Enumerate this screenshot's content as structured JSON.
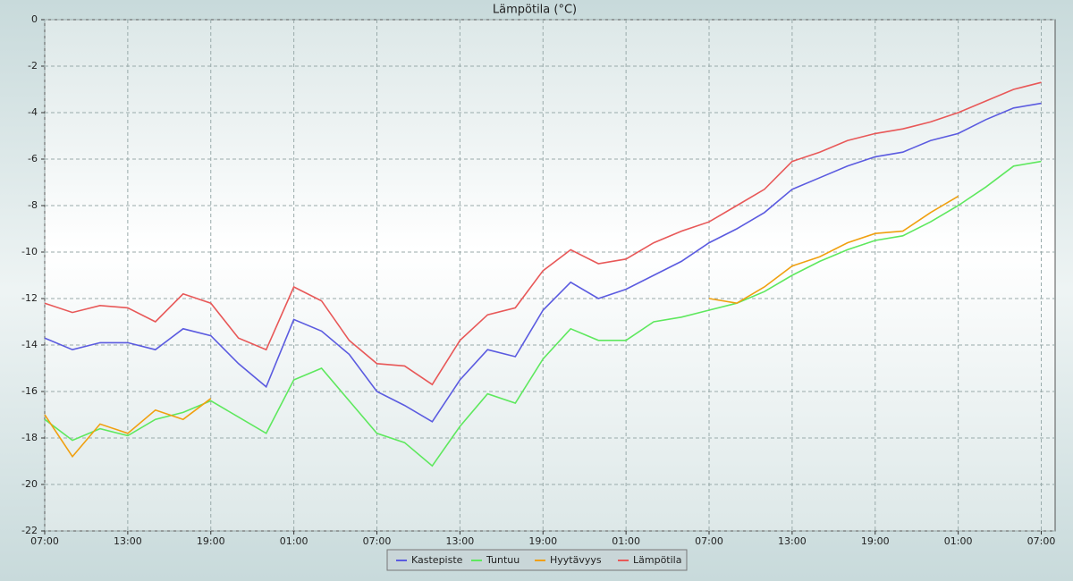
{
  "chart_data": {
    "type": "line",
    "title": "Lämpötila (°C)",
    "x": [
      0,
      2,
      4,
      6,
      8,
      10,
      12,
      14,
      16,
      18,
      20,
      22,
      24,
      26,
      28,
      30,
      32,
      34,
      36,
      38,
      40,
      42,
      44,
      46,
      48,
      50,
      52,
      54,
      56,
      58,
      60,
      62,
      64,
      66,
      68,
      70,
      72
    ],
    "series": [
      {
        "name": "Kastepiste",
        "color": "#5b5be0",
        "values": [
          -13.7,
          -14.2,
          -13.9,
          -13.9,
          -14.2,
          -13.3,
          -13.6,
          -14.8,
          -15.8,
          -12.9,
          -13.4,
          -14.4,
          -16.0,
          -16.6,
          -17.3,
          -15.5,
          -14.2,
          -14.5,
          -12.5,
          -11.3,
          -12.0,
          -11.6,
          -11.0,
          -10.4,
          -9.6,
          -9.0,
          -8.3,
          -7.3,
          -6.8,
          -6.3,
          -5.9,
          -5.7,
          -5.2,
          -4.9,
          -4.3,
          -3.8,
          -3.6
        ]
      },
      {
        "name": "Tuntuu",
        "color": "#5ee85e",
        "values": [
          -17.2,
          -18.1,
          -17.6,
          -17.9,
          -17.2,
          -16.9,
          -16.4,
          -17.1,
          -17.8,
          -15.5,
          -15.0,
          -16.4,
          -17.8,
          -18.2,
          -19.2,
          -17.5,
          -16.1,
          -16.5,
          -14.6,
          -13.3,
          -13.8,
          -13.8,
          -13.0,
          -12.8,
          -12.5,
          -12.2,
          -11.7,
          -11.0,
          -10.4,
          -9.9,
          -9.5,
          -9.3,
          -8.7,
          -8.0,
          -7.2,
          -6.3,
          -6.1
        ]
      },
      {
        "name": "Hyytävyys",
        "color": "#f0a010",
        "values": [
          -17.0,
          -18.8,
          -17.4,
          -17.8,
          -16.8,
          -17.2,
          -16.3,
          null,
          null,
          null,
          null,
          null,
          null,
          null,
          null,
          null,
          null,
          null,
          null,
          null,
          null,
          null,
          null,
          null,
          -12.0,
          -12.2,
          -11.5,
          -10.6,
          -10.2,
          -9.6,
          -9.2,
          -9.1,
          -8.3,
          -7.6,
          null,
          null,
          null
        ]
      },
      {
        "name": "Lämpötila",
        "color": "#e85858",
        "values": [
          -12.2,
          -12.6,
          -12.3,
          -12.4,
          -13.0,
          -11.8,
          -12.2,
          -13.7,
          -14.2,
          -11.5,
          -12.1,
          -13.8,
          -14.8,
          -14.9,
          -15.7,
          -13.8,
          -12.7,
          -12.4,
          -10.8,
          -9.9,
          -10.5,
          -10.3,
          -9.6,
          -9.1,
          -8.7,
          -8.0,
          -7.3,
          -6.1,
          -5.7,
          -5.2,
          -4.9,
          -4.7,
          -4.4,
          -4.0,
          -3.5,
          -3.0,
          -2.7
        ]
      }
    ],
    "xlim": [
      0,
      73
    ],
    "xticks": [
      {
        "value": 0,
        "label": "07:00"
      },
      {
        "value": 6,
        "label": "13:00"
      },
      {
        "value": 12,
        "label": "19:00"
      },
      {
        "value": 18,
        "label": "01:00"
      },
      {
        "value": 24,
        "label": "07:00"
      },
      {
        "value": 30,
        "label": "13:00"
      },
      {
        "value": 36,
        "label": "19:00"
      },
      {
        "value": 42,
        "label": "01:00"
      },
      {
        "value": 48,
        "label": "07:00"
      },
      {
        "value": 54,
        "label": "13:00"
      },
      {
        "value": 60,
        "label": "19:00"
      },
      {
        "value": 66,
        "label": "01:00"
      },
      {
        "value": 72,
        "label": "07:00"
      }
    ],
    "ylim": [
      -22,
      0
    ],
    "yticks": [
      0,
      -2,
      -4,
      -6,
      -8,
      -10,
      -12,
      -14,
      -16,
      -18,
      -20,
      -22
    ],
    "grid": true,
    "legend": "bottom"
  }
}
